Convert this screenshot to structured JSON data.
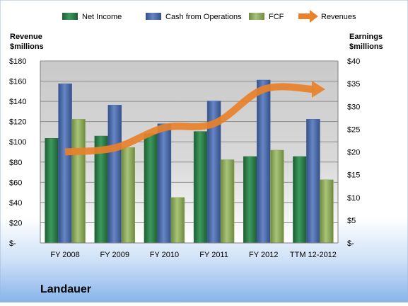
{
  "chart_data": {
    "type": "bar",
    "title": "Landauer",
    "categories": [
      "FY 2008",
      "FY 2009",
      "FY 2010",
      "FY 2011",
      "FY 2012",
      "TTM 12-2012"
    ],
    "series": [
      {
        "name": "Net Income",
        "axis": "right",
        "color": "#2e7d4a",
        "values": [
          23,
          23.5,
          24,
          24.5,
          19,
          19
        ]
      },
      {
        "name": "Cash from Operations",
        "axis": "right",
        "color": "#4a6aa8",
        "values": [
          35,
          30.3,
          26.2,
          31.2,
          35.8,
          27.2
        ]
      },
      {
        "name": "FCF",
        "axis": "right",
        "color": "#8fac5c",
        "values": [
          27.2,
          21,
          10,
          18.3,
          20.4,
          13.9
        ]
      },
      {
        "name": "Revenues",
        "axis": "left",
        "type": "line",
        "color": "#e8812a",
        "values": [
          90,
          94,
          114,
          118,
          152,
          152
        ]
      }
    ],
    "ylabel_left": [
      "Revenue",
      "$millions"
    ],
    "ylabel_right": [
      "Earnings",
      "$millions"
    ],
    "y_left": {
      "min": 0,
      "max": 180,
      "step": 20,
      "ticks": [
        "$-",
        "$20",
        "$40",
        "$60",
        "$80",
        "$100",
        "$120",
        "$140",
        "$160",
        "$180"
      ]
    },
    "y_right": {
      "min": 0,
      "max": 40,
      "step": 5,
      "ticks": [
        "$-",
        "$5",
        "$10",
        "$15",
        "$20",
        "$25",
        "$30",
        "$35",
        "$40"
      ]
    },
    "grid": true,
    "legend_position": "top"
  }
}
